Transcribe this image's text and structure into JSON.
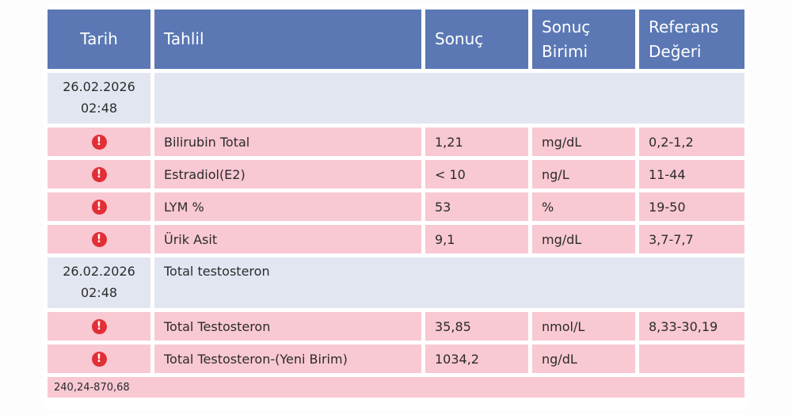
{
  "headers": {
    "date": "Tarih",
    "test": "Tahlil",
    "result": "Sonuç",
    "unit_line1": "Sonuç",
    "unit_line2": "Birimi",
    "ref_line1": "Referans",
    "ref_line2": "Değeri"
  },
  "groups": [
    {
      "date": "26.02.2026",
      "time": "02:48",
      "title": "",
      "rows": [
        {
          "test": "Bilirubin Total",
          "result": "1,21",
          "unit": "mg/dL",
          "ref": "0,2-1,2",
          "icon": "alert-icon"
        },
        {
          "test": "Estradiol(E2)",
          "result": "< 10",
          "unit": "ng/L",
          "ref": "11-44",
          "icon": "alert-icon"
        },
        {
          "test": "LYM %",
          "result": "53",
          "unit": "%",
          "ref": "19-50",
          "icon": "alert-icon"
        },
        {
          "test": "Ürik Asit",
          "result": "9,1",
          "unit": "mg/dL",
          "ref": "3,7-7,7",
          "icon": "alert-icon"
        }
      ]
    },
    {
      "date": "26.02.2026",
      "time": "02:48",
      "title": "Total testosteron",
      "rows": [
        {
          "test": "Total Testosteron",
          "result": "35,85",
          "unit": "nmol/L",
          "ref": "8,33-30,19",
          "icon": "alert-icon"
        },
        {
          "test": "Total Testosteron-(Yeni Birim)",
          "result": "1034,2",
          "unit": "ng/dL",
          "ref": "",
          "icon": "alert-icon"
        }
      ]
    }
  ],
  "note": "240,24-870,68",
  "colors": {
    "header": "#5b78b5",
    "group": "#e2e6f1",
    "abnormal": "#f8c8d3",
    "alert": "#e12f36"
  }
}
